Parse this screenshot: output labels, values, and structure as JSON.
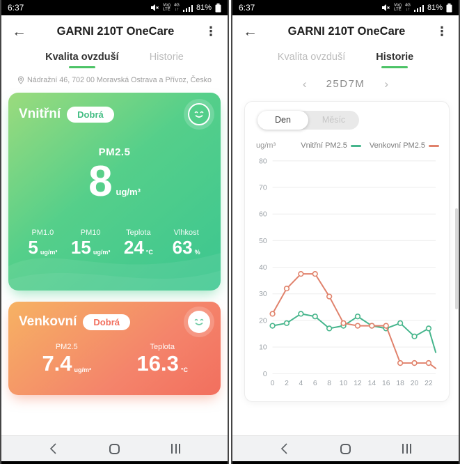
{
  "colors": {
    "accent_green": "#4cc366",
    "indoor_line": "#45b58c",
    "outdoor_line": "#e0816b",
    "card_green_start": "#9bdb7d",
    "card_green_end": "#3cc690",
    "card_orange_start": "#f6b263",
    "card_orange_end": "#f26f5e"
  },
  "icons": {
    "back": "←",
    "menu": "⋮",
    "prev": "‹",
    "next": "›"
  },
  "status_bar": {
    "time": "6:37",
    "volte_top": "Vo))",
    "volte_bottom": "LTE",
    "net": "4G",
    "net_arrows": "↓↑",
    "battery_pct": "81%"
  },
  "header": {
    "title": "GARNI 210T OneCare"
  },
  "tabs": {
    "air_quality": "Kvalita ovzduší",
    "history": "Historie"
  },
  "left": {
    "location": "Nádražní 46, 702 00 Moravská Ostrava a Přívoz, Česko",
    "indoor": {
      "title": "Vnitřní",
      "badge": "Dobrá",
      "main_label": "PM2.5",
      "main_value": "8",
      "main_unit": "ug/m³",
      "stats": [
        {
          "label": "PM1.0",
          "value": "5",
          "unit": "ug/m³"
        },
        {
          "label": "PM10",
          "value": "15",
          "unit": "ug/m³"
        },
        {
          "label": "Teplota",
          "value": "24",
          "unit": "°C"
        },
        {
          "label": "Vlhkost",
          "value": "63",
          "unit": "%"
        }
      ]
    },
    "outdoor": {
      "title": "Venkovní",
      "badge": "Dobrá",
      "stats": [
        {
          "label": "PM2.5",
          "value": "7.4",
          "unit": "ug/m³"
        },
        {
          "label": "Teplota",
          "value": "16.3",
          "unit": "°C"
        }
      ]
    }
  },
  "right": {
    "date_nav": {
      "label": "25D7M"
    },
    "toggle": {
      "day": "Den",
      "month": "Měsíc",
      "selected": "Den"
    },
    "chart_data": {
      "type": "line",
      "ylabel": "ug/m³",
      "x": [
        0,
        2,
        4,
        6,
        8,
        10,
        12,
        14,
        16,
        18,
        20,
        22,
        23
      ],
      "series": [
        {
          "name": "Vnitřní PM2.5",
          "color": "#45b58c",
          "values": [
            18,
            19,
            22.5,
            21.5,
            17,
            18,
            21.5,
            18,
            17,
            19,
            14,
            17,
            8
          ]
        },
        {
          "name": "Venkovní PM2.5",
          "color": "#e0816b",
          "values": [
            22.5,
            32,
            37.5,
            37.5,
            29,
            19,
            18,
            18,
            18,
            4,
            4,
            4,
            2
          ]
        }
      ],
      "xlim": [
        0,
        23
      ],
      "ylim": [
        0,
        80
      ],
      "yticks": [
        0,
        10,
        20,
        30,
        40,
        50,
        60,
        70,
        80
      ],
      "xticks": [
        0,
        2,
        4,
        6,
        8,
        10,
        12,
        14,
        16,
        18,
        20,
        22
      ],
      "grid": true,
      "legend_position": "top-right"
    }
  }
}
